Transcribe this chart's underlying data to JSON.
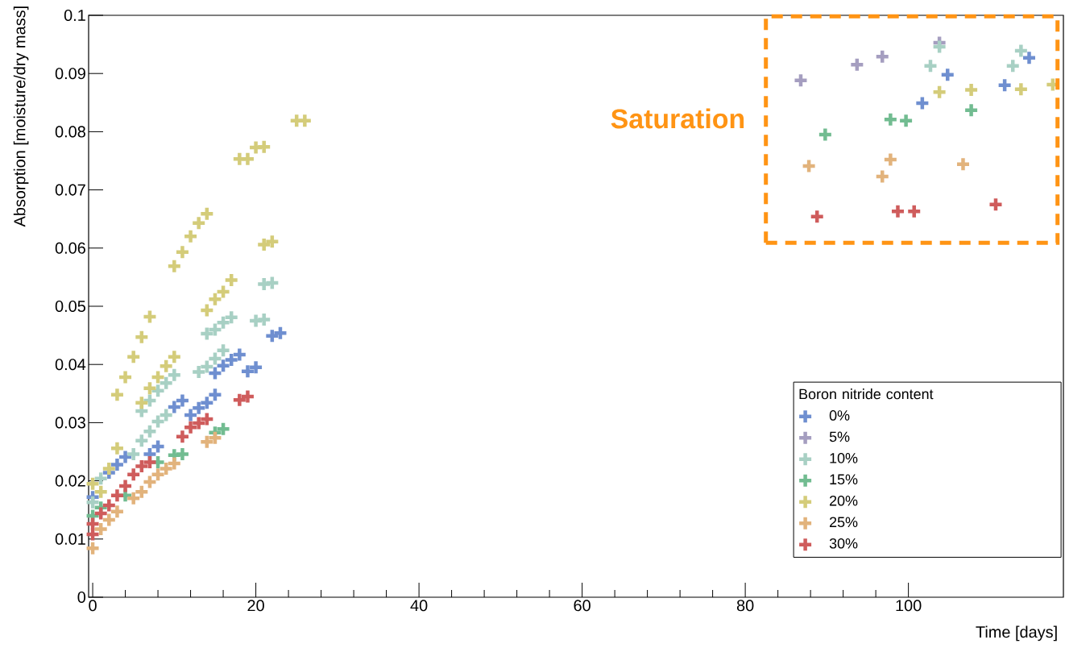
{
  "chart_data": {
    "type": "scatter",
    "xlabel": "Time [days]",
    "ylabel": "Absorption [moisture/dry mass]",
    "legend_title": "Boron nitride content",
    "legend": "bottom right",
    "marker": "cross",
    "annotations": [
      "Saturation"
    ],
    "xlim": [
      -0.5,
      119
    ],
    "ylim": [
      0,
      0.1
    ],
    "xticks": [
      0,
      20,
      40,
      60,
      80,
      100
    ],
    "yticks": [
      0,
      0.01,
      0.02,
      0.03,
      0.04,
      0.05,
      0.06,
      0.07,
      0.08,
      0.09,
      0.1
    ],
    "series": [
      {
        "name": "0%",
        "color": "#6f8fd0",
        "x": [
          0,
          1,
          2,
          3,
          4,
          6,
          7,
          8,
          10,
          11,
          12,
          13,
          14,
          15,
          15,
          16,
          17,
          18,
          19,
          20,
          22,
          23,
          101.7,
          104.8,
          111.8,
          114.8
        ],
        "values": [
          0.0172,
          null,
          0.0214,
          0.0228,
          0.0241,
          null,
          0.0246,
          0.0259,
          0.0327,
          0.0338,
          0.0313,
          0.0325,
          0.0334,
          0.0348,
          0.0385,
          0.0398,
          0.0408,
          0.0417,
          0.0388,
          0.0395,
          0.0449,
          0.0454,
          0.0849,
          0.0898,
          0.088,
          0.0927
        ]
      },
      {
        "name": "5%",
        "color": "#a59ec0",
        "x": [
          86.8,
          93.7,
          96.8,
          103.8
        ],
        "values": [
          0.0888,
          0.0915,
          0.0929,
          0.0953
        ]
      },
      {
        "name": "10%",
        "color": "#a8d0c4",
        "x": [
          0,
          1,
          5,
          6,
          7,
          8,
          9,
          6,
          7,
          8,
          9,
          10,
          13,
          14,
          15,
          16,
          14,
          15,
          16,
          17,
          20,
          21,
          21,
          22,
          102.7,
          103.8,
          112.8,
          113.8
        ],
        "values": [
          0.0163,
          0.0204,
          0.0246,
          0.0269,
          0.0285,
          0.0302,
          0.0313,
          0.032,
          0.0338,
          0.0355,
          0.0368,
          0.0382,
          0.0387,
          0.0396,
          0.041,
          0.0424,
          0.0453,
          0.046,
          0.0472,
          0.0481,
          0.0475,
          0.0477,
          0.0538,
          0.054,
          0.0913,
          0.0946,
          0.0913,
          0.0939
        ]
      },
      {
        "name": "15%",
        "color": "#72bc91",
        "x": [
          0,
          1,
          4,
          7,
          8,
          10,
          11,
          15,
          16,
          89.8,
          97.8,
          99.7,
          107.7
        ],
        "values": [
          0.014,
          0.0154,
          0.0175,
          null,
          0.0232,
          0.0244,
          0.0246,
          0.0283,
          0.0289,
          0.0795,
          0.0821,
          0.0819,
          0.0837
        ]
      },
      {
        "name": "20%",
        "color": "#d4cc7a",
        "x": [
          0,
          1,
          2,
          3,
          3,
          4,
          5,
          6,
          7,
          6,
          7,
          8,
          9,
          10,
          10,
          11,
          12,
          13,
          14,
          14,
          15,
          16,
          17,
          18,
          19,
          20,
          21,
          21,
          22,
          25,
          26,
          103.8,
          107.7,
          113.8,
          117.7
        ],
        "values": [
          0.0195,
          0.0181,
          0.0221,
          0.0256,
          0.0348,
          0.0378,
          0.0413,
          0.0447,
          0.0482,
          0.0334,
          0.0359,
          0.0378,
          0.0397,
          0.0413,
          0.0569,
          0.0593,
          0.062,
          0.0643,
          0.0659,
          0.0493,
          0.0512,
          0.0525,
          0.0545,
          0.0753,
          0.0753,
          0.0773,
          0.0774,
          0.0606,
          0.0611,
          0.0819,
          0.0819,
          0.0868,
          0.0872,
          0.0873,
          0.0881
        ]
      },
      {
        "name": "25%",
        "color": "#e2b37c",
        "x": [
          0,
          1,
          2,
          3,
          5,
          6,
          7,
          8,
          9,
          10,
          14,
          15,
          87.8,
          96.8,
          97.8,
          106.7
        ],
        "values": [
          0.0084,
          0.0117,
          0.0133,
          0.0147,
          0.017,
          0.0181,
          0.0198,
          0.0211,
          0.0221,
          0.023,
          0.0267,
          0.0274,
          0.0741,
          0.0723,
          0.0752,
          0.0744
        ]
      },
      {
        "name": "30%",
        "color": "#cf5c5c",
        "x": [
          0,
          0,
          1,
          2,
          3,
          4,
          5,
          6,
          7,
          11,
          12,
          13,
          14,
          18,
          19,
          88.8,
          98.7,
          100.7,
          110.7
        ],
        "values": [
          0.0108,
          0.0126,
          0.0144,
          0.0158,
          0.0175,
          0.0191,
          0.0211,
          0.0225,
          0.0232,
          0.0276,
          0.0292,
          0.0299,
          0.0306,
          0.0339,
          0.0345,
          0.0654,
          0.0663,
          0.0663,
          0.0675
        ]
      }
    ]
  }
}
